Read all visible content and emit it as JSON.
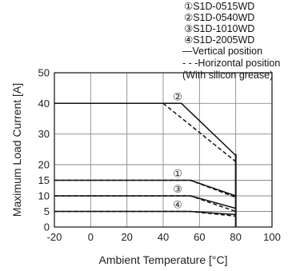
{
  "chart_data": {
    "type": "line",
    "xlabel": "Ambient Temperature [°C]",
    "ylabel": "Maximum Load Current [A]",
    "xlim": [
      -20,
      100
    ],
    "ylim": [
      0,
      50
    ],
    "xticks": [
      -20,
      0,
      20,
      40,
      60,
      80,
      100
    ],
    "yticks": [
      0,
      5,
      10,
      15,
      20,
      30,
      40,
      50
    ],
    "y_scale": "piecewise-linear: 0-20 expanded, 20-50 compressed",
    "grid": true,
    "vertical_limit_x": 80,
    "legend": [
      "①S1D-0515WD",
      "②S1D-0540WD",
      "③S1D-1010WD",
      "④S1D-2005WD",
      "—Vertical position",
      "- - -Horizontal position",
      "(With silicon grease)"
    ],
    "series": [
      {
        "name": "②",
        "style": "solid",
        "x": [
          -20,
          40,
          50,
          80
        ],
        "y": [
          40,
          40,
          40,
          23
        ]
      },
      {
        "name": "②",
        "style": "dashed",
        "x": [
          -20,
          40,
          80
        ],
        "y": [
          40,
          40,
          21
        ]
      },
      {
        "name": "①",
        "style": "solid",
        "x": [
          -20,
          55,
          80
        ],
        "y": [
          15,
          15,
          10
        ]
      },
      {
        "name": "①",
        "style": "dashed",
        "x": [
          -20,
          55,
          80
        ],
        "y": [
          15,
          15,
          9.5
        ]
      },
      {
        "name": "③",
        "style": "solid",
        "x": [
          -20,
          55,
          80
        ],
        "y": [
          10,
          10,
          6
        ]
      },
      {
        "name": "③",
        "style": "dashed",
        "x": [
          -20,
          55,
          80
        ],
        "y": [
          10,
          10,
          5
        ]
      },
      {
        "name": "④",
        "style": "solid",
        "x": [
          -20,
          55,
          80
        ],
        "y": [
          5,
          5,
          4
        ]
      },
      {
        "name": "④",
        "style": "dashed",
        "x": [
          -20,
          55,
          80
        ],
        "y": [
          5,
          5,
          3.5
        ]
      }
    ],
    "curve_labels": [
      {
        "text": "②",
        "x": 48,
        "y": 42
      },
      {
        "text": "①",
        "x": 48,
        "y": 17
      },
      {
        "text": "③",
        "x": 48,
        "y": 12
      },
      {
        "text": "④",
        "x": 48,
        "y": 7
      }
    ]
  }
}
